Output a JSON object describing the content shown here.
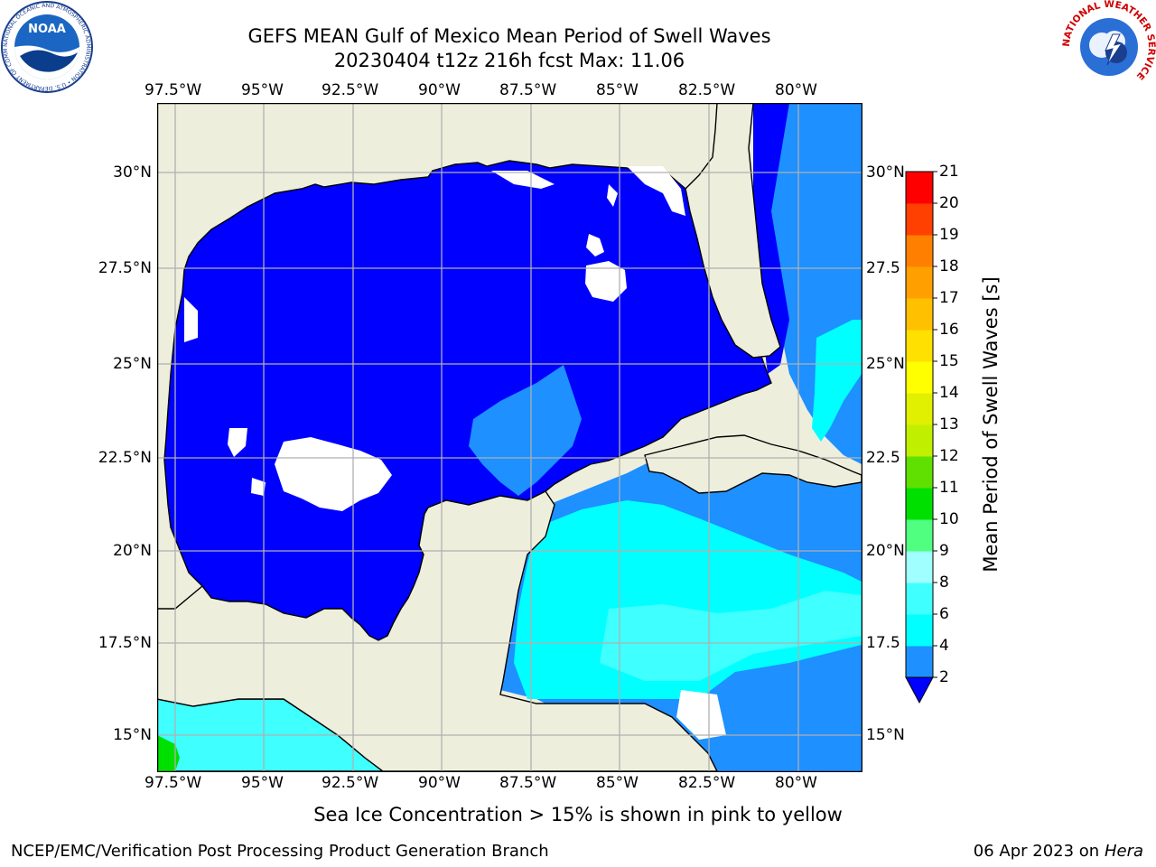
{
  "header": {
    "title": "GEFS MEAN Gulf of Mexico Mean Period of Swell Waves",
    "subtitle": "20230404 t12z 216h fcst   Max: 11.06"
  },
  "map": {
    "lon_labels": [
      "97.5°W",
      "95°W",
      "92.5°W",
      "90°W",
      "87.5°W",
      "85°W",
      "82.5°W",
      "80°W"
    ],
    "lat_labels": [
      "30°N",
      "27.5°N",
      "25°N",
      "22.5°N",
      "20°N",
      "17.5°N",
      "15°N"
    ],
    "lat_labels_right": [
      "30°N",
      "27.5",
      "25°N",
      "22.5",
      "20°N",
      "17.5",
      "15°N"
    ],
    "land_color": "#eeeedd",
    "grid_color": "#b0b0b0"
  },
  "colorbar": {
    "title": "Mean Period of Swell Waves [s]",
    "ticks": [
      "2",
      "4",
      "6",
      "8",
      "9",
      "10",
      "11",
      "12",
      "13",
      "14",
      "15",
      "16",
      "17",
      "18",
      "19",
      "20",
      "21"
    ],
    "colors": [
      "#0000ff",
      "#1e90ff",
      "#00ffff",
      "#40ffff",
      "#a0ffff",
      "#50ff80",
      "#00e000",
      "#60e000",
      "#c0f000",
      "#e0f000",
      "#ffff00",
      "#ffe000",
      "#ffc000",
      "#ffa000",
      "#ff8000",
      "#ff4000",
      "#ff0000"
    ],
    "under_color": "#0000ff"
  },
  "caption": "Sea Ice Concentration > 15% is shown in pink to yellow",
  "footer": {
    "left": "NCEP/EMC/Verification Post Processing Product Generation Branch",
    "right_date": "06 Apr 2023 on ",
    "right_host": "Hera"
  },
  "logos": {
    "noaa": "NOAA",
    "noaa_ring": "NATIONAL OCEANIC AND ATMOSPHERIC ADMINISTRATION • U.S. DEPARTMENT OF COMMERCE",
    "nws_ring": "NATIONAL WEATHER SERVICE"
  }
}
